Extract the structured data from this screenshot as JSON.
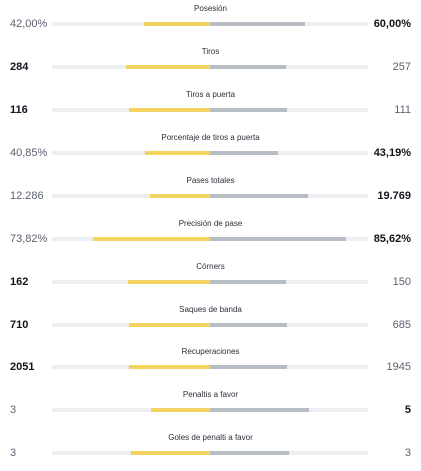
{
  "stats": [
    {
      "label": "Posesión",
      "home": "42,00%",
      "away": "60,00%",
      "home_frac": 0.42,
      "away_frac": 0.6,
      "home_bold": false,
      "away_bold": true
    },
    {
      "label": "Tiros",
      "home": "284",
      "away": "257",
      "home_frac": 0.53,
      "away_frac": 0.48,
      "home_bold": true,
      "away_bold": false
    },
    {
      "label": "Tiros a puerta",
      "home": "116",
      "away": "111",
      "home_frac": 0.51,
      "away_frac": 0.49,
      "home_bold": true,
      "away_bold": false
    },
    {
      "label": "Porcentaje de tiros a puerta",
      "home": "40,85%",
      "away": "43,19%",
      "home_frac": 0.41,
      "away_frac": 0.43,
      "home_bold": false,
      "away_bold": true
    },
    {
      "label": "Pases totales",
      "home": "12.286",
      "away": "19.769",
      "home_frac": 0.38,
      "away_frac": 0.62,
      "home_bold": false,
      "away_bold": true
    },
    {
      "label": "Precisión de pase",
      "home": "73,82%",
      "away": "85,62%",
      "home_frac": 0.74,
      "away_frac": 0.86,
      "home_bold": false,
      "away_bold": true
    },
    {
      "label": "Córners",
      "home": "162",
      "away": "150",
      "home_frac": 0.52,
      "away_frac": 0.48,
      "home_bold": true,
      "away_bold": false
    },
    {
      "label": "Saques de banda",
      "home": "710",
      "away": "685",
      "home_frac": 0.51,
      "away_frac": 0.49,
      "home_bold": true,
      "away_bold": false
    },
    {
      "label": "Recuperaciones",
      "home": "2051",
      "away": "1945",
      "home_frac": 0.51,
      "away_frac": 0.49,
      "home_bold": true,
      "away_bold": false
    },
    {
      "label": "Penaltis a favor",
      "home": "3",
      "away": "5",
      "home_frac": 0.375,
      "away_frac": 0.625,
      "home_bold": false,
      "away_bold": true
    },
    {
      "label": "Goles de penalti a favor",
      "home": "3",
      "away": "3",
      "home_frac": 0.5,
      "away_frac": 0.5,
      "home_bold": false,
      "away_bold": false
    }
  ],
  "colors": {
    "home_bar": "#f3d35f",
    "away_bar": "#b8bcc3",
    "track": "#eceef1"
  }
}
